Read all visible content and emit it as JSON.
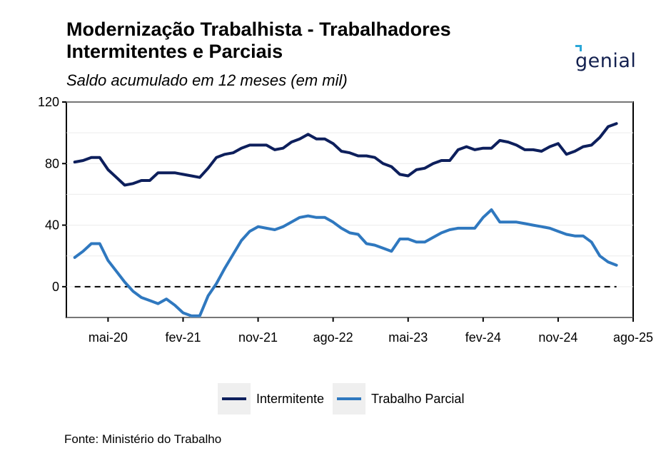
{
  "title": "Modernização Trabalhista - Trabalhadores\n Intermitentes e Parciais",
  "subtitle": "Saldo acumulado em 12 meses (em mil)",
  "logo": {
    "text": "genial",
    "accent_color": "#2aa7d8",
    "color": "#13204f"
  },
  "source": "Fonte: Ministério do Trabalho",
  "chart_data": {
    "type": "line",
    "title": "Modernização Trabalhista - Trabalhadores Intermitentes e Parciais",
    "subtitle": "Saldo acumulado em 12 meses (em mil)",
    "xlabel": "",
    "ylabel": "",
    "ylim": [
      -20,
      120
    ],
    "y_ticks": [
      0,
      40,
      80,
      120
    ],
    "x_ticks": [
      "mai-20",
      "fev-21",
      "nov-21",
      "ago-22",
      "mai-23",
      "fev-24",
      "nov-24",
      "ago-25"
    ],
    "x_range": [
      "2019-12",
      "2025-08"
    ],
    "grid": true,
    "legend_position": "bottom",
    "reference_line": {
      "y": 0,
      "style": "dashed"
    },
    "x": [
      "2020-01",
      "2020-02",
      "2020-03",
      "2020-04",
      "2020-05",
      "2020-06",
      "2020-07",
      "2020-08",
      "2020-09",
      "2020-10",
      "2020-11",
      "2020-12",
      "2021-01",
      "2021-02",
      "2021-03",
      "2021-04",
      "2021-05",
      "2021-06",
      "2021-07",
      "2021-08",
      "2021-09",
      "2021-10",
      "2021-11",
      "2021-12",
      "2022-01",
      "2022-02",
      "2022-03",
      "2022-04",
      "2022-05",
      "2022-06",
      "2022-07",
      "2022-08",
      "2022-09",
      "2022-10",
      "2022-11",
      "2022-12",
      "2023-01",
      "2023-02",
      "2023-03",
      "2023-04",
      "2023-05",
      "2023-06",
      "2023-07",
      "2023-08",
      "2023-09",
      "2023-10",
      "2023-11",
      "2023-12",
      "2024-01",
      "2024-02",
      "2024-03",
      "2024-04",
      "2024-05",
      "2024-06",
      "2024-07",
      "2024-08",
      "2024-09",
      "2024-10",
      "2024-11",
      "2024-12",
      "2025-01",
      "2025-02",
      "2025-03",
      "2025-04",
      "2025-05",
      "2025-06"
    ],
    "series": [
      {
        "name": "Intermitente",
        "color": "#0d1f5c",
        "values": [
          81,
          82,
          84,
          84,
          76,
          71,
          66,
          67,
          69,
          69,
          74,
          74,
          74,
          73,
          72,
          71,
          77,
          84,
          86,
          87,
          90,
          92,
          92,
          92,
          89,
          90,
          94,
          96,
          99,
          96,
          96,
          93,
          88,
          87,
          85,
          85,
          84,
          80,
          78,
          73,
          72,
          76,
          77,
          80,
          82,
          82,
          89,
          91,
          89,
          90,
          90,
          95,
          94,
          92,
          89,
          89,
          88,
          91,
          93,
          86,
          88,
          91,
          92,
          97,
          104,
          106
        ]
      },
      {
        "name": "Trabalho Parcial",
        "color": "#2f78bf",
        "values": [
          19,
          23,
          28,
          28,
          17,
          10,
          3,
          -3,
          -7,
          -9,
          -11,
          -8,
          -12,
          -17,
          -19,
          -19,
          -6,
          2,
          12,
          21,
          30,
          36,
          39,
          38,
          37,
          39,
          42,
          45,
          46,
          45,
          45,
          42,
          38,
          35,
          34,
          28,
          27,
          25,
          23,
          31,
          31,
          29,
          29,
          32,
          35,
          37,
          38,
          38,
          38,
          45,
          50,
          42,
          42,
          42,
          41,
          40,
          39,
          38,
          36,
          34,
          33,
          33,
          29,
          20,
          16,
          14
        ]
      }
    ]
  }
}
